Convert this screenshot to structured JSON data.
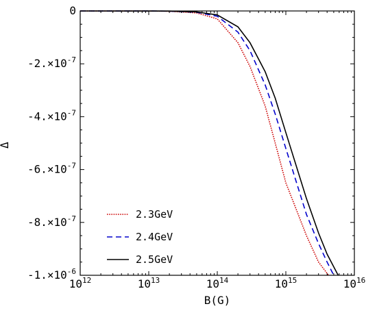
{
  "chart_data": {
    "type": "line",
    "title": "",
    "xlabel": "B(G)",
    "ylabel": "Δ",
    "x_scale": "log",
    "xlim": [
      1000000000000.0,
      1e+16
    ],
    "ylim": [
      -1e-06,
      0
    ],
    "x_ticks": [
      {
        "value": 1000000000000.0,
        "base": "10",
        "exp": "12"
      },
      {
        "value": 10000000000000.0,
        "base": "10",
        "exp": "13"
      },
      {
        "value": 100000000000000.0,
        "base": "10",
        "exp": "14"
      },
      {
        "value": 1000000000000000.0,
        "base": "10",
        "exp": "15"
      },
      {
        "value": 1e+16,
        "base": "10",
        "exp": "16"
      }
    ],
    "y_ticks": [
      {
        "value": 0,
        "mantissa": "0",
        "exp": ""
      },
      {
        "value": -2e-07,
        "mantissa": "-2.×10",
        "exp": "-7"
      },
      {
        "value": -4e-07,
        "mantissa": "-4.×10",
        "exp": "-7"
      },
      {
        "value": -6e-07,
        "mantissa": "-6.×10",
        "exp": "-7"
      },
      {
        "value": -8e-07,
        "mantissa": "-8.×10",
        "exp": "-7"
      },
      {
        "value": -1e-06,
        "mantissa": "-1.×10",
        "exp": "-6"
      }
    ],
    "legend_position": "bottom-left",
    "grid": false,
    "series": [
      {
        "name": "2.3GeV",
        "color": "#cc0000",
        "style": "dotted",
        "points": [
          [
            1000000000000.0,
            0
          ],
          [
            10000000000000.0,
            -3e-10
          ],
          [
            20000000000000.0,
            -1.2e-09
          ],
          [
            50000000000000.0,
            -7.5e-09
          ],
          [
            100000000000000.0,
            -3e-08
          ],
          [
            200000000000000.0,
            -1.2e-07
          ],
          [
            300000000000000.0,
            -2.1e-07
          ],
          [
            500000000000000.0,
            -3.6e-07
          ],
          [
            700000000000000.0,
            -5e-07
          ],
          [
            1000000000000000.0,
            -6.5e-07
          ],
          [
            2000000000000000.0,
            -8.5e-07
          ],
          [
            3000000000000000.0,
            -9.5e-07
          ],
          [
            4200000000000000.0,
            -1e-06
          ]
        ]
      },
      {
        "name": "2.4GeV",
        "color": "#0000cc",
        "style": "dashed",
        "points": [
          [
            1000000000000.0,
            0
          ],
          [
            10000000000000.0,
            -2e-10
          ],
          [
            20000000000000.0,
            -8e-10
          ],
          [
            50000000000000.0,
            -5e-09
          ],
          [
            100000000000000.0,
            -2e-08
          ],
          [
            200000000000000.0,
            -8e-08
          ],
          [
            300000000000000.0,
            -1.5e-07
          ],
          [
            500000000000000.0,
            -2.8e-07
          ],
          [
            700000000000000.0,
            -3.9e-07
          ],
          [
            1000000000000000.0,
            -5.2e-07
          ],
          [
            2000000000000000.0,
            -7.7e-07
          ],
          [
            3000000000000000.0,
            -8.8e-07
          ],
          [
            4000000000000000.0,
            -9.5e-07
          ],
          [
            5000000000000000.0,
            -1e-06
          ]
        ]
      },
      {
        "name": "2.5GeV",
        "color": "#000000",
        "style": "solid",
        "points": [
          [
            1000000000000.0,
            0
          ],
          [
            10000000000000.0,
            -1.5e-10
          ],
          [
            20000000000000.0,
            -6e-10
          ],
          [
            50000000000000.0,
            -3.8e-09
          ],
          [
            100000000000000.0,
            -1.5e-08
          ],
          [
            200000000000000.0,
            -6e-08
          ],
          [
            300000000000000.0,
            -1.2e-07
          ],
          [
            500000000000000.0,
            -2.3e-07
          ],
          [
            700000000000000.0,
            -3.3e-07
          ],
          [
            1000000000000000.0,
            -4.6e-07
          ],
          [
            2000000000000000.0,
            -7.1e-07
          ],
          [
            3000000000000000.0,
            -8.4e-07
          ],
          [
            4000000000000000.0,
            -9.2e-07
          ],
          [
            5800000000000000.0,
            -1e-06
          ]
        ]
      }
    ]
  }
}
